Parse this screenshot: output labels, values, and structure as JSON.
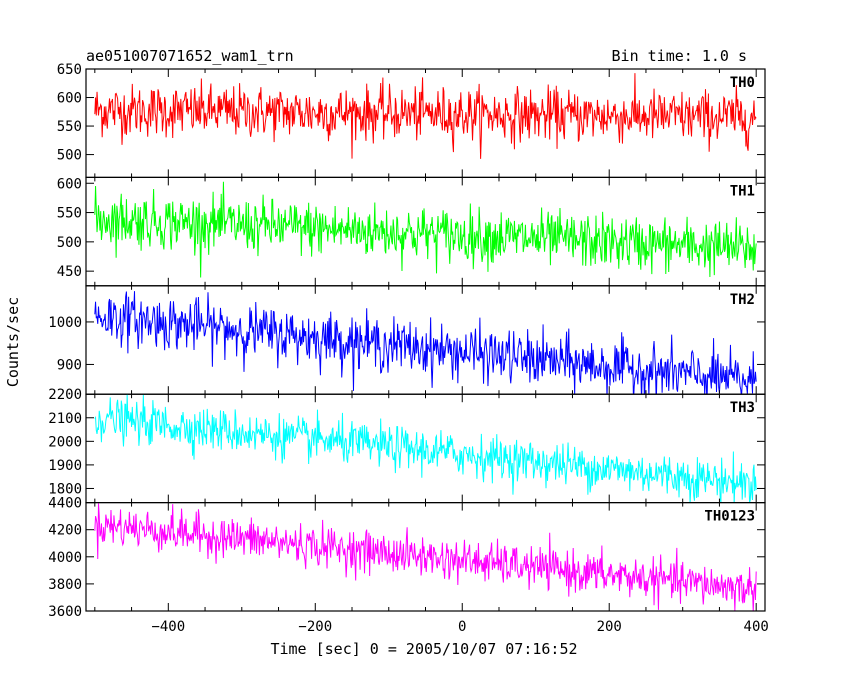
{
  "header": {
    "title": "ae051007071652_wam1_trn",
    "bin_time": "Bin time: 1.0 s"
  },
  "chart_data": {
    "type": "line",
    "xlabel": "Time [sec] 0 = 2005/10/07 07:16:52",
    "ylabel": "Counts/sec",
    "xlim": [
      -512,
      412
    ],
    "x_ticks": [
      -400,
      -200,
      0,
      200,
      400
    ],
    "x_tick_labels": [
      "−400",
      "−200",
      "0",
      "200",
      "400"
    ],
    "x_start": -500,
    "x_end": 400,
    "x_step": 1,
    "panels": [
      {
        "label": "TH0",
        "color": "#ff0000",
        "ylim": [
          460,
          650
        ],
        "yticks": [
          500,
          550,
          600,
          650
        ],
        "trend_start": 578,
        "trend_end": 565,
        "noise_std": 23
      },
      {
        "label": "TH1",
        "color": "#00ff00",
        "ylim": [
          425,
          610
        ],
        "yticks": [
          450,
          500,
          550,
          600
        ],
        "trend_start": 540,
        "trend_end": 488,
        "noise_std": 23
      },
      {
        "label": "TH2",
        "color": "#0000ff",
        "ylim": [
          830,
          1085
        ],
        "yticks": [
          900,
          1000
        ],
        "trend_start": 1015,
        "trend_end": 860,
        "noise_std": 31
      },
      {
        "label": "TH3",
        "color": "#00ffff",
        "ylim": [
          1740,
          2200
        ],
        "yticks": [
          1800,
          1900,
          2000,
          2100,
          2200
        ],
        "trend_start": 2100,
        "trend_end": 1820,
        "noise_std": 45
      },
      {
        "label": "TH0123",
        "color": "#ff00ff",
        "ylim": [
          3600,
          4400
        ],
        "yticks": [
          3600,
          3800,
          4000,
          4200,
          4400
        ],
        "trend_start": 4240,
        "trend_end": 3760,
        "noise_std": 75
      }
    ]
  }
}
